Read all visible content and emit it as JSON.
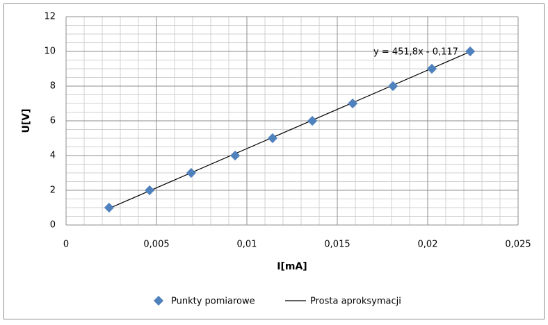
{
  "chart_data": {
    "type": "scatter",
    "x_label": "I[mA]",
    "y_label": "U[V]",
    "series": [
      {
        "name": "Punkty pomiarowe",
        "color": "#4f81bd",
        "x": [
          0.00238,
          0.00462,
          0.00692,
          0.00935,
          0.01142,
          0.01362,
          0.01585,
          0.01808,
          0.02023,
          0.02235
        ],
        "values": [
          1,
          2,
          3,
          4,
          5,
          6,
          7,
          8,
          9,
          10
        ]
      }
    ],
    "trendline": {
      "name": "Prosta aproksymacji",
      "label": "y = 451,8x - 0,117",
      "slope": 451.8,
      "intercept": -0.117,
      "color": "#000000"
    },
    "xlim": [
      0,
      0.025
    ],
    "xticks": [
      0,
      {
        "value": 0.005,
        "label": "0,005"
      },
      {
        "value": 0.01,
        "label": "0,01"
      },
      {
        "value": 0.015,
        "label": "0,015"
      },
      {
        "value": 0.02,
        "label": "0,02"
      },
      {
        "value": 0.025,
        "label": "0,025"
      }
    ],
    "ylim": [
      0,
      12
    ],
    "yticks": [
      0,
      2,
      4,
      6,
      8,
      10,
      12
    ],
    "grid": true,
    "minor_grid": true
  }
}
